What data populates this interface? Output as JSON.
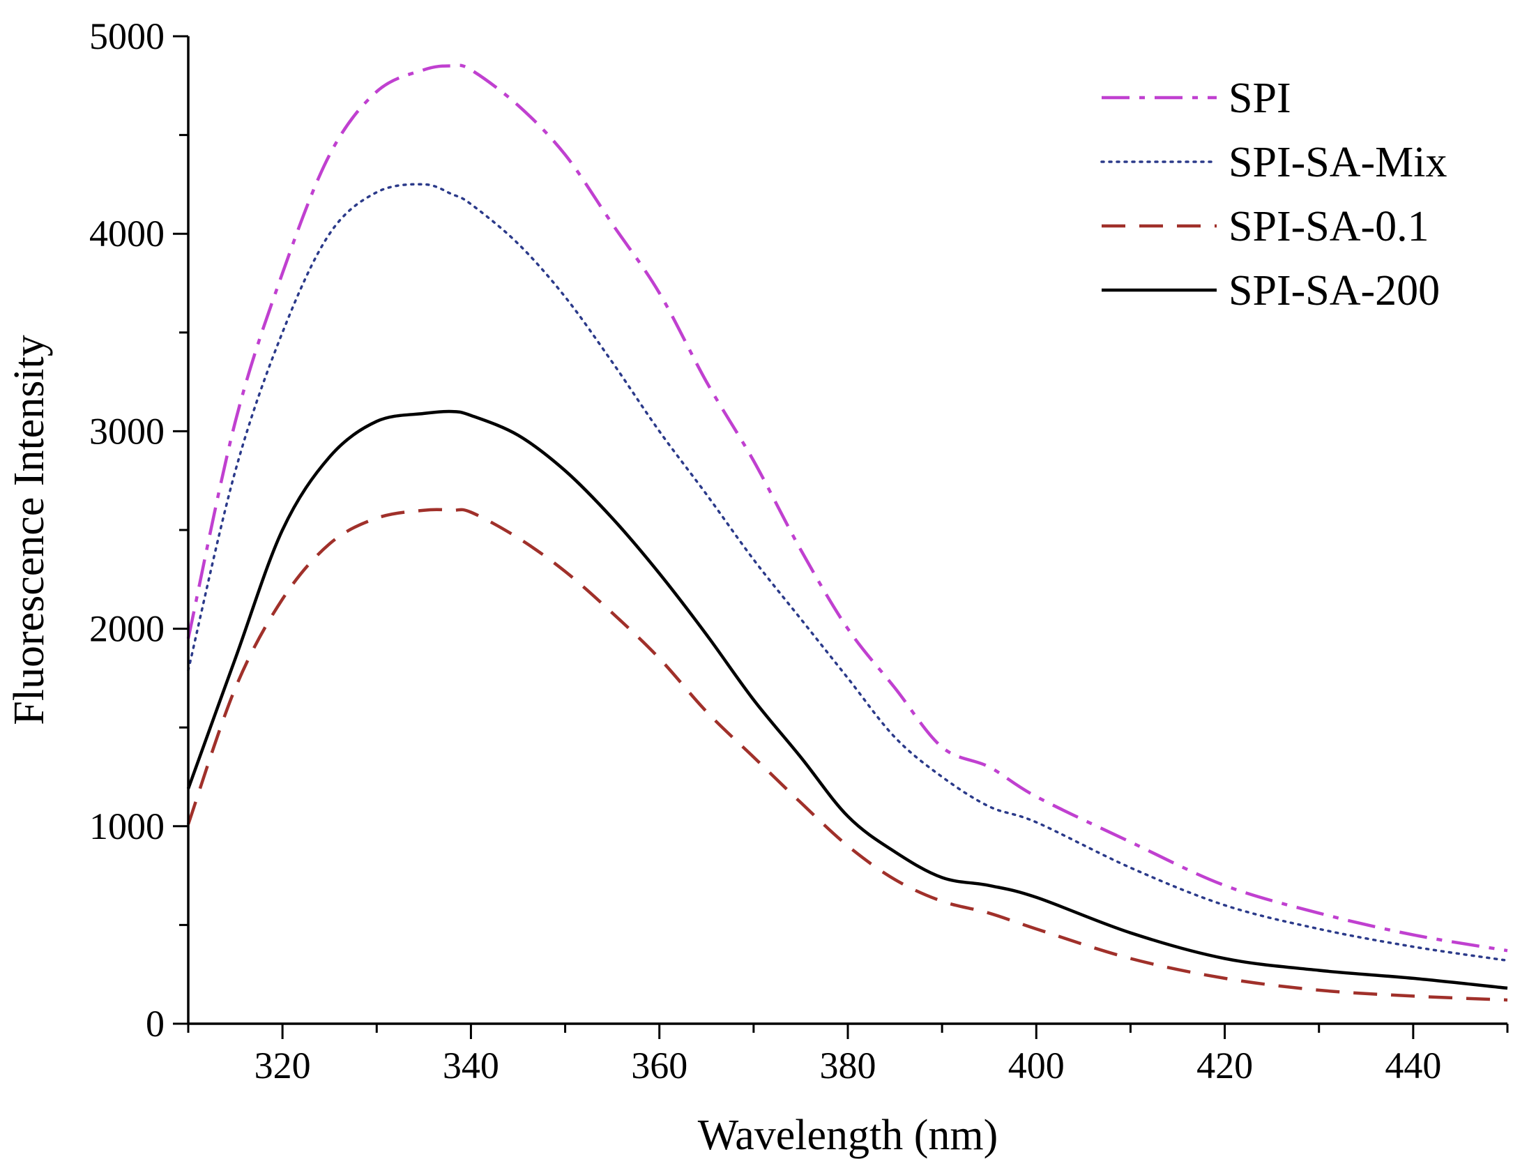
{
  "chart_data": {
    "type": "line",
    "title": "",
    "xlabel": "Wavelength (nm)",
    "ylabel": "Fluorescence Intensity",
    "xlim": [
      310,
      450
    ],
    "ylim": [
      0,
      5000
    ],
    "x_ticks": [
      320,
      340,
      360,
      380,
      400,
      420,
      440
    ],
    "y_ticks": [
      0,
      1000,
      2000,
      3000,
      4000,
      5000
    ],
    "grid": false,
    "legend_position": "top-right",
    "x": [
      310,
      315,
      320,
      325,
      330,
      335,
      338,
      340,
      345,
      350,
      355,
      360,
      365,
      370,
      375,
      380,
      385,
      390,
      395,
      400,
      410,
      420,
      430,
      440,
      450
    ],
    "series": [
      {
        "name": "SPI",
        "color": "#c040d0",
        "dash": "dashdot",
        "values": [
          1950,
          3050,
          3800,
          4400,
          4720,
          4830,
          4850,
          4830,
          4650,
          4400,
          4050,
          3700,
          3250,
          2850,
          2400,
          2000,
          1700,
          1400,
          1300,
          1150,
          920,
          700,
          560,
          450,
          370
        ]
      },
      {
        "name": "SPI-SA-Mix",
        "color": "#2b3a8a",
        "dash": "dotted",
        "values": [
          1790,
          2800,
          3500,
          4000,
          4210,
          4250,
          4200,
          4150,
          3950,
          3680,
          3350,
          3000,
          2680,
          2350,
          2050,
          1750,
          1450,
          1250,
          1100,
          1020,
          790,
          600,
          480,
          390,
          320
        ]
      },
      {
        "name": "SPI-SA-0.1",
        "color": "#a0302a",
        "dash": "dashed",
        "values": [
          1010,
          1700,
          2150,
          2430,
          2560,
          2600,
          2600,
          2590,
          2460,
          2290,
          2080,
          1850,
          1580,
          1350,
          1120,
          900,
          730,
          620,
          560,
          480,
          330,
          230,
          170,
          140,
          120
        ]
      },
      {
        "name": "SPI-SA-200",
        "color": "#000000",
        "dash": "solid",
        "values": [
          1190,
          1850,
          2500,
          2870,
          3050,
          3090,
          3100,
          3080,
          2980,
          2800,
          2560,
          2280,
          1970,
          1640,
          1350,
          1050,
          870,
          740,
          700,
          640,
          460,
          330,
          270,
          230,
          180
        ]
      }
    ]
  }
}
